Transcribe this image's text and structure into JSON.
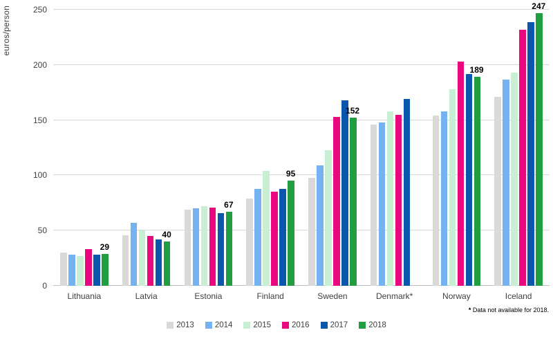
{
  "footnote": {
    "star": "*",
    "text": " Data not available for 2018."
  },
  "chart_data": {
    "type": "bar",
    "title": "",
    "xlabel": "",
    "ylabel": "euros/person",
    "ylim": [
      0,
      250
    ],
    "yticks": [
      0,
      50,
      100,
      150,
      200,
      250
    ],
    "grid": true,
    "legend_position": "bottom",
    "categories": [
      "Lithuania",
      "Latvia",
      "Estonia",
      "Finland",
      "Sweden",
      "Denmark*",
      "Norway",
      "Iceland"
    ],
    "series": [
      {
        "name": "2013",
        "color": "#d9d9d9",
        "values": [
          30,
          46,
          69,
          79,
          98,
          146,
          154,
          171
        ]
      },
      {
        "name": "2014",
        "color": "#74b2f2",
        "values": [
          28,
          57,
          70,
          88,
          109,
          148,
          158,
          187
        ]
      },
      {
        "name": "2015",
        "color": "#c8eed4",
        "values": [
          27,
          50,
          72,
          104,
          123,
          158,
          178,
          193
        ]
      },
      {
        "name": "2016",
        "color": "#e9087e",
        "values": [
          33,
          45,
          71,
          85,
          153,
          155,
          203,
          232
        ]
      },
      {
        "name": "2017",
        "color": "#0b57ac",
        "values": [
          28,
          42,
          66,
          88,
          168,
          169,
          192,
          239
        ]
      },
      {
        "name": "2018",
        "color": "#219e41",
        "values": [
          29,
          40,
          67,
          95,
          152,
          null,
          189,
          247
        ]
      }
    ],
    "labeled_series": "2018",
    "data_labels": [
      29,
      40,
      67,
      95,
      152,
      null,
      189,
      247
    ]
  }
}
